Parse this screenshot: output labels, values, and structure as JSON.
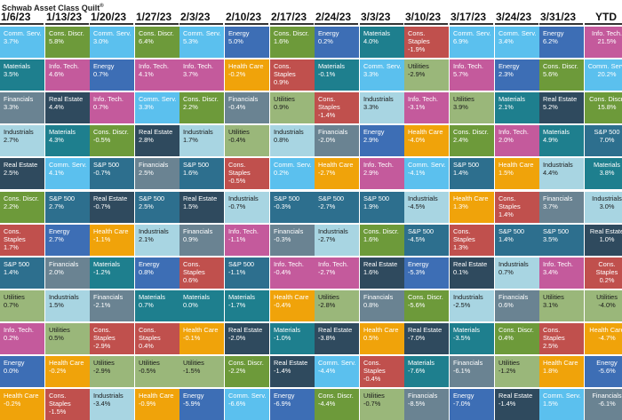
{
  "title": "Schwab Asset Class Quilt",
  "title_mark": "®",
  "colors": {
    "Comm. Serv.": "#5bc0ee",
    "Cons. Discr.": "#6d9a3a",
    "Energy": "#3d6eb5",
    "Materials": "#1e7f8e",
    "Info. Tech.": "#c45a9c",
    "Financials": "#6a8392",
    "Industrials": "#a8d5e2",
    "Real Estate": "#2f4a5e",
    "Health Care": "#f0a30a",
    "Cons. Staples": "#c0504d",
    "Utilities": "#9ab77a",
    "S&P 500": "#2d6f8e"
  },
  "chart_data": {
    "type": "table",
    "columns": [
      "1/6/23",
      "1/13/23",
      "1/20/23",
      "1/27/23",
      "2/3/23",
      "2/10/23",
      "2/17/23",
      "2/24/23",
      "3/3/23",
      "3/10/23",
      "3/17/23",
      "3/24/23",
      "3/31/23",
      "YTD"
    ],
    "cells": [
      [
        [
          "Comm. Serv.",
          "3.7%"
        ],
        [
          "Materials",
          "3.5%"
        ],
        [
          "Financials",
          "3.3%"
        ],
        [
          "Industrials",
          "2.7%"
        ],
        [
          "Real Estate",
          "2.5%"
        ],
        [
          "Cons. Discr.",
          "2.2%"
        ],
        [
          "Cons. Staples",
          "1.7%"
        ],
        [
          "S&P 500",
          "1.4%"
        ],
        [
          "Utilities",
          "0.7%"
        ],
        [
          "Info. Tech.",
          "0.2%"
        ],
        [
          "Energy",
          "0.0%"
        ],
        [
          "Health Care",
          "-0.2%"
        ]
      ],
      [
        [
          "Cons. Discr.",
          "5.8%"
        ],
        [
          "Info. Tech.",
          "4.6%"
        ],
        [
          "Real Estate",
          "4.4%"
        ],
        [
          "Materials",
          "4.3%"
        ],
        [
          "Comm. Serv.",
          "4.1%"
        ],
        [
          "S&P 500",
          "2.7%"
        ],
        [
          "Energy",
          "2.7%"
        ],
        [
          "Financials",
          "2.0%"
        ],
        [
          "Industrials",
          "1.5%"
        ],
        [
          "Utilities",
          "0.5%"
        ],
        [
          "Health Care",
          "-0.2%"
        ],
        [
          "Cons. Staples",
          "-1.5%"
        ]
      ],
      [
        [
          "Comm. Serv.",
          "3.0%"
        ],
        [
          "Energy",
          "0.7%"
        ],
        [
          "Info. Tech.",
          "0.7%"
        ],
        [
          "Cons. Discr.",
          "-0.5%"
        ],
        [
          "S&P 500",
          "-0.7%"
        ],
        [
          "Real Estate",
          "-0.7%"
        ],
        [
          "Health Care",
          "-1.1%"
        ],
        [
          "Materials",
          "-1.2%"
        ],
        [
          "Financials",
          "-2.1%"
        ],
        [
          "Cons. Staples",
          "-2.9%"
        ],
        [
          "Utilities",
          "-2.9%"
        ],
        [
          "Industrials",
          "-3.4%"
        ]
      ],
      [
        [
          "Cons. Discr.",
          "6.4%"
        ],
        [
          "Info. Tech.",
          "4.1%"
        ],
        [
          "Comm. Serv.",
          "3.3%"
        ],
        [
          "Real Estate",
          "2.8%"
        ],
        [
          "Financials",
          "2.5%"
        ],
        [
          "S&P 500",
          "2.5%"
        ],
        [
          "Industrials",
          "2.1%"
        ],
        [
          "Energy",
          "0.8%"
        ],
        [
          "Materials",
          "0.7%"
        ],
        [
          "Cons. Staples",
          "0.4%"
        ],
        [
          "Utilities",
          "-0.5%"
        ],
        [
          "Health Care",
          "-0.9%"
        ]
      ],
      [
        [
          "Comm. Serv.",
          "5.3%"
        ],
        [
          "Info. Tech.",
          "3.7%"
        ],
        [
          "Cons. Discr.",
          "2.2%"
        ],
        [
          "Industrials",
          "1.7%"
        ],
        [
          "S&P 500",
          "1.6%"
        ],
        [
          "Real Estate",
          "1.5%"
        ],
        [
          "Financials",
          "0.9%"
        ],
        [
          "Cons. Staples",
          "0.6%"
        ],
        [
          "Materials",
          "0.0%"
        ],
        [
          "Health Care",
          "-0.1%"
        ],
        [
          "Utilities",
          "-1.5%"
        ],
        [
          "Energy",
          "-5.9%"
        ]
      ],
      [
        [
          "Energy",
          "5.0%"
        ],
        [
          "Health Care",
          "-0.2%"
        ],
        [
          "Financials",
          "-0.4%"
        ],
        [
          "Utilities",
          "-0.4%"
        ],
        [
          "Cons. Staples",
          "-0.5%"
        ],
        [
          "Industrials",
          "-0.7%"
        ],
        [
          "Info. Tech.",
          "-1.1%"
        ],
        [
          "S&P 500",
          "-1.1%"
        ],
        [
          "Materials",
          "-1.7%"
        ],
        [
          "Real Estate",
          "-2.0%"
        ],
        [
          "Cons. Discr.",
          "-2.2%"
        ],
        [
          "Comm. Serv.",
          "-6.6%"
        ]
      ],
      [
        [
          "Cons. Discr.",
          "1.6%"
        ],
        [
          "Cons. Staples",
          "0.9%"
        ],
        [
          "Utilities",
          "0.9%"
        ],
        [
          "Industrials",
          "0.8%"
        ],
        [
          "Comm. Serv.",
          "0.2%"
        ],
        [
          "S&P 500",
          "-0.3%"
        ],
        [
          "Financials",
          "-0.3%"
        ],
        [
          "Info. Tech.",
          "-0.4%"
        ],
        [
          "Health Care",
          "-0.4%"
        ],
        [
          "Materials",
          "-1.0%"
        ],
        [
          "Real Estate",
          "-1.4%"
        ],
        [
          "Energy",
          "-6.9%"
        ]
      ],
      [
        [
          "Energy",
          "0.2%"
        ],
        [
          "Materials",
          "-0.1%"
        ],
        [
          "Cons. Staples",
          "-1.4%"
        ],
        [
          "Financials",
          "-2.0%"
        ],
        [
          "Health Care",
          "-2.7%"
        ],
        [
          "S&P 500",
          "-2.7%"
        ],
        [
          "Industrials",
          "-2.7%"
        ],
        [
          "Info. Tech.",
          "-2.7%"
        ],
        [
          "Utilities",
          "-2.8%"
        ],
        [
          "Real Estate",
          "-3.8%"
        ],
        [
          "Comm. Serv.",
          "-4.4%"
        ],
        [
          "Cons. Discr.",
          "-4.4%"
        ]
      ],
      [
        [
          "Materials",
          "4.0%"
        ],
        [
          "Comm. Serv.",
          "3.3%"
        ],
        [
          "Industrials",
          "3.3%"
        ],
        [
          "Energy",
          "2.9%"
        ],
        [
          "Info. Tech.",
          "2.9%"
        ],
        [
          "S&P 500",
          "1.9%"
        ],
        [
          "Cons. Discr.",
          "1.6%"
        ],
        [
          "Real Estate",
          "1.6%"
        ],
        [
          "Financials",
          "0.8%"
        ],
        [
          "Health Care",
          "0.5%"
        ],
        [
          "Cons. Staples",
          "-0.4%"
        ],
        [
          "Utilities",
          "-0.7%"
        ]
      ],
      [
        [
          "Cons. Staples",
          "-1.9%"
        ],
        [
          "Utilities",
          "-2.9%"
        ],
        [
          "Info. Tech.",
          "-3.1%"
        ],
        [
          "Health Care",
          "-4.0%"
        ],
        [
          "Comm. Serv.",
          "-4.1%"
        ],
        [
          "Industrials",
          "-4.5%"
        ],
        [
          "S&P 500",
          "-4.5%"
        ],
        [
          "Energy",
          "-5.3%"
        ],
        [
          "Cons. Discr.",
          "-5.6%"
        ],
        [
          "Real Estate",
          "-7.0%"
        ],
        [
          "Materials",
          "-7.6%"
        ],
        [
          "Financials",
          "-8.5%"
        ]
      ],
      [
        [
          "Comm. Serv.",
          "6.9%"
        ],
        [
          "Info. Tech.",
          "5.7%"
        ],
        [
          "Utilities",
          "3.9%"
        ],
        [
          "Cons. Discr.",
          "2.4%"
        ],
        [
          "S&P 500",
          "1.4%"
        ],
        [
          "Health Care",
          "1.3%"
        ],
        [
          "Cons. Staples",
          "1.3%"
        ],
        [
          "Real Estate",
          "0.1%"
        ],
        [
          "Industrials",
          "-2.5%"
        ],
        [
          "Materials",
          "-3.5%"
        ],
        [
          "Financials",
          "-6.1%"
        ],
        [
          "Energy",
          "-7.0%"
        ]
      ],
      [
        [
          "Comm. Serv.",
          "3.4%"
        ],
        [
          "Energy",
          "2.3%"
        ],
        [
          "Materials",
          "2.1%"
        ],
        [
          "Info. Tech.",
          "2.0%"
        ],
        [
          "Health Care",
          "1.5%"
        ],
        [
          "Cons. Staples",
          "1.4%"
        ],
        [
          "S&P 500",
          "1.4%"
        ],
        [
          "Industrials",
          "0.7%"
        ],
        [
          "Financials",
          "0.6%"
        ],
        [
          "Cons. Discr.",
          "0.4%"
        ],
        [
          "Utilities",
          "-1.2%"
        ],
        [
          "Real Estate",
          "-1.4%"
        ]
      ],
      [
        [
          "Energy",
          "6.2%"
        ],
        [
          "Cons. Discr.",
          "5.6%"
        ],
        [
          "Real Estate",
          "5.2%"
        ],
        [
          "Materials",
          "4.9%"
        ],
        [
          "Industrials",
          "4.4%"
        ],
        [
          "Financials",
          "3.7%"
        ],
        [
          "S&P 500",
          "3.5%"
        ],
        [
          "Info. Tech.",
          "3.4%"
        ],
        [
          "Utilities",
          "3.1%"
        ],
        [
          "Cons. Staples",
          "2.5%"
        ],
        [
          "Health Care",
          "1.8%"
        ],
        [
          "Comm. Serv.",
          "1.5%"
        ]
      ],
      [
        [
          "Info. Tech.",
          "21.5%"
        ],
        [
          "Comm. Serv.",
          "20.2%"
        ],
        [
          "Cons. Discr.",
          "15.8%"
        ],
        [
          "S&P 500",
          "7.0%"
        ],
        [
          "Materials",
          "3.8%"
        ],
        [
          "Industrials",
          "3.0%"
        ],
        [
          "Real Estate",
          "1.0%"
        ],
        [
          "Cons. Staples",
          "0.2%"
        ],
        [
          "Utilities",
          "-4.0%"
        ],
        [
          "Health Care",
          "-4.7%"
        ],
        [
          "Energy",
          "-5.6%"
        ],
        [
          "Financials",
          "-6.1%"
        ]
      ]
    ]
  }
}
